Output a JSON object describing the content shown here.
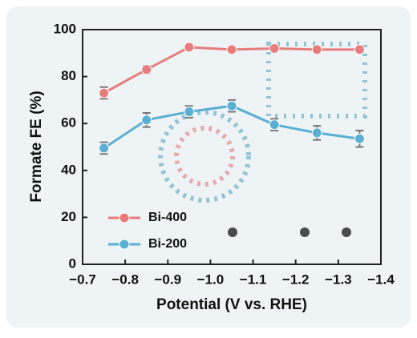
{
  "chart_data": {
    "type": "line",
    "xlabel": "Potential (V vs. RHE)",
    "ylabel": "Formate FE (%)",
    "x": [
      -0.75,
      -0.85,
      -0.95,
      -1.05,
      -1.15,
      -1.25,
      -1.35
    ],
    "series": [
      {
        "name": "Bi-400",
        "color": "#e87c7c",
        "values": [
          73,
          83,
          92.5,
          91.5,
          92,
          91.5,
          91.5
        ],
        "errors": [
          2.5,
          1.5,
          1,
          1,
          1,
          1,
          1
        ]
      },
      {
        "name": "Bi-200",
        "color": "#5aafd3",
        "values": [
          49.5,
          61.5,
          65,
          67.5,
          59.5,
          56,
          53.5
        ],
        "errors": [
          2.5,
          3,
          2.5,
          2.5,
          2.5,
          3,
          3.5
        ]
      }
    ],
    "xlim": [
      -0.7,
      -1.4
    ],
    "xticks": [
      {
        "value": -0.7,
        "label": "−0.7"
      },
      {
        "value": -0.8,
        "label": "−0.8"
      },
      {
        "value": -0.9,
        "label": "−0.9"
      },
      {
        "value": -1.0,
        "label": "−1.0"
      },
      {
        "value": -1.1,
        "label": "−1.1"
      },
      {
        "value": -1.2,
        "label": "−1.2"
      },
      {
        "value": -1.3,
        "label": "−1.3"
      },
      {
        "value": -1.4,
        "label": "−1.4"
      }
    ],
    "ylim": [
      0,
      100
    ],
    "yticks": [
      0,
      20,
      40,
      60,
      80,
      100
    ],
    "legend": "lower left"
  }
}
